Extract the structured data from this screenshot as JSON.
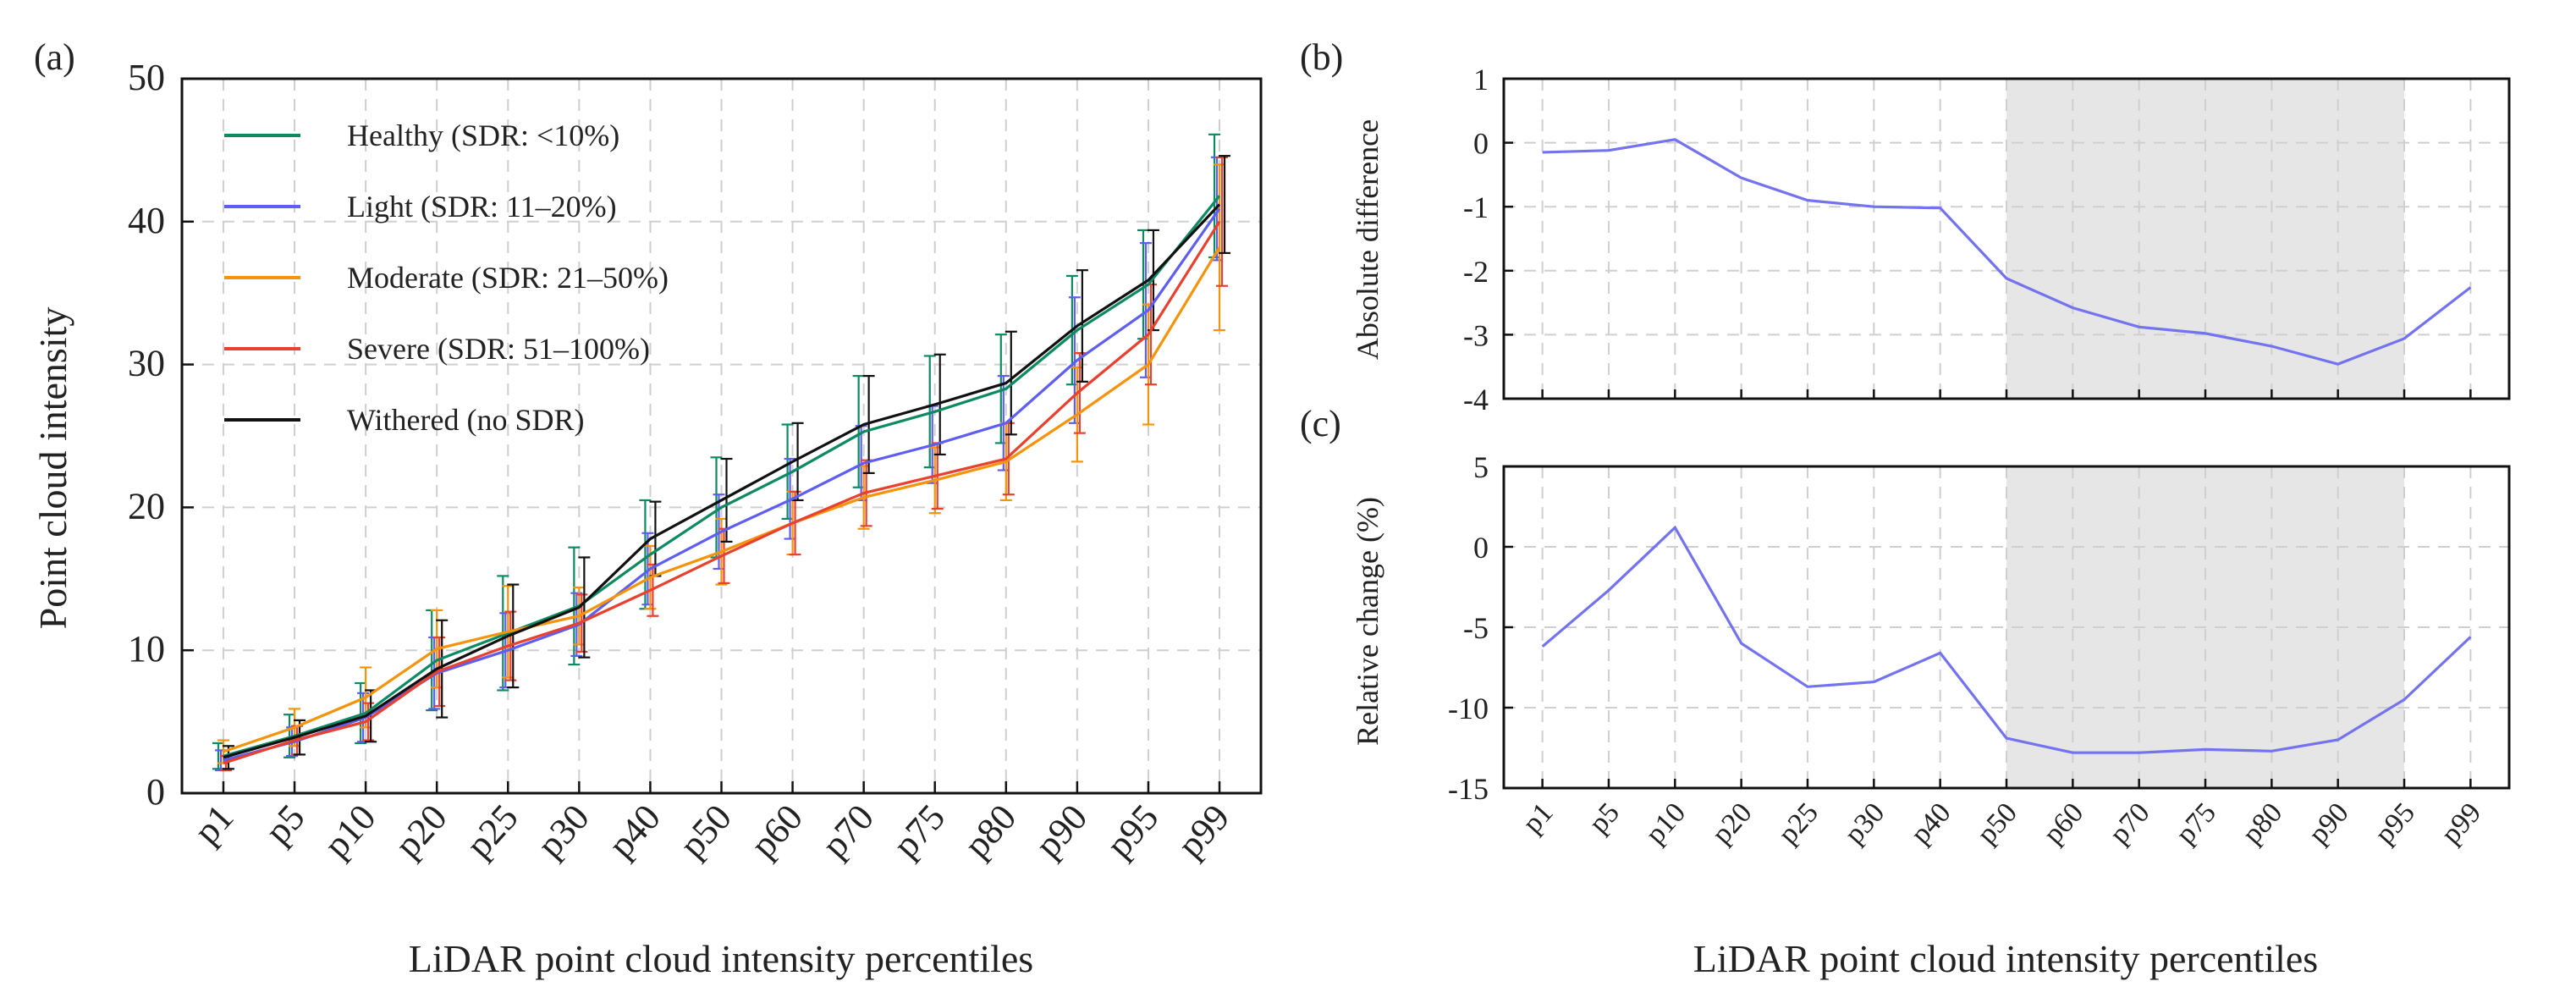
{
  "panels": {
    "a": "(a)",
    "b": "(b)",
    "c": "(c)"
  },
  "shared_xlabel": "LiDAR point cloud intensity percentiles",
  "chart_data": [
    {
      "id": "a",
      "type": "line",
      "title": "",
      "xlabel": "LiDAR point cloud intensity percentiles",
      "ylabel": "Point cloud intensity",
      "categories": [
        "p1",
        "p5",
        "p10",
        "p20",
        "p25",
        "p30",
        "p40",
        "p50",
        "p60",
        "p70",
        "p75",
        "p80",
        "p90",
        "p95",
        "p99"
      ],
      "ylim": [
        0,
        50
      ],
      "yticks": [
        0,
        10,
        20,
        30,
        40,
        50
      ],
      "grid": true,
      "legend_position": "top-left",
      "series": [
        {
          "name": "Healthy (SDR: <10%)",
          "color": "#0e8a63",
          "values": [
            2.6,
            4.0,
            5.6,
            9.3,
            11.2,
            13.1,
            16.7,
            20.0,
            22.5,
            25.3,
            26.7,
            28.3,
            32.4,
            35.6,
            41.8
          ],
          "errors": [
            0.9,
            1.5,
            2.1,
            3.5,
            4.0,
            4.1,
            3.8,
            3.5,
            3.3,
            3.9,
            3.9,
            3.8,
            3.8,
            3.8,
            4.3
          ]
        },
        {
          "name": "Light (SDR: 11–20%)",
          "color": "#5e5ef2",
          "values": [
            2.3,
            3.6,
            5.3,
            8.4,
            10.0,
            11.8,
            15.7,
            18.3,
            20.6,
            23.1,
            24.4,
            25.9,
            30.3,
            33.8,
            40.9
          ],
          "errors": [
            0.7,
            1.0,
            1.7,
            2.5,
            2.6,
            2.2,
            2.5,
            2.6,
            2.8,
            2.6,
            2.7,
            3.3,
            4.4,
            4.7,
            3.6
          ]
        },
        {
          "name": "Moderate (SDR: 21–50%)",
          "color": "#f5930a",
          "values": [
            2.9,
            4.6,
            6.7,
            10.1,
            11.3,
            12.4,
            15.1,
            16.9,
            18.9,
            20.7,
            21.9,
            23.2,
            26.5,
            30.0,
            38.2
          ],
          "errors": [
            0.8,
            1.3,
            2.1,
            2.7,
            3.2,
            2.0,
            2.2,
            2.3,
            2.2,
            2.2,
            2.3,
            2.7,
            3.3,
            4.2,
            5.8
          ]
        },
        {
          "name": "Severe (SDR: 51–100%)",
          "color": "#e8412f",
          "values": [
            2.1,
            3.7,
            5.0,
            8.5,
            10.3,
            11.9,
            14.2,
            16.6,
            18.9,
            21.0,
            22.2,
            23.4,
            28.0,
            32.1,
            40.0
          ],
          "errors": [
            0.5,
            1.0,
            1.3,
            2.4,
            2.4,
            2.0,
            1.8,
            1.9,
            2.2,
            2.3,
            2.3,
            2.5,
            2.8,
            3.5,
            4.5
          ]
        },
        {
          "name": "Withered (no SDR)",
          "color": "#111111",
          "values": [
            2.5,
            3.9,
            5.4,
            8.7,
            11.0,
            13.0,
            17.8,
            20.5,
            23.2,
            25.8,
            27.2,
            28.7,
            32.7,
            35.9,
            41.2
          ],
          "errors": [
            0.8,
            1.2,
            1.8,
            3.4,
            3.6,
            3.5,
            2.6,
            2.9,
            2.7,
            3.4,
            3.5,
            3.6,
            3.9,
            3.5,
            3.4
          ]
        }
      ]
    },
    {
      "id": "b",
      "type": "line",
      "title": "",
      "xlabel": "",
      "ylabel": "Absolute difference",
      "categories": [
        "p1",
        "p5",
        "p10",
        "p20",
        "p25",
        "p30",
        "p40",
        "p50",
        "p60",
        "p70",
        "p75",
        "p80",
        "p90",
        "p95",
        "p99"
      ],
      "ylim": [
        -4,
        1
      ],
      "yticks": [
        1,
        0,
        -1,
        -2,
        -3,
        -4
      ],
      "grid": true,
      "shaded_range": [
        "p50",
        "p95"
      ],
      "series": [
        {
          "name": "Absolute difference",
          "color": "#7373f0",
          "values": [
            -0.15,
            -0.12,
            0.05,
            -0.55,
            -0.9,
            -1.0,
            -1.02,
            -2.12,
            -2.58,
            -2.88,
            -2.98,
            -3.18,
            -3.46,
            -3.06,
            -2.26
          ]
        }
      ]
    },
    {
      "id": "c",
      "type": "line",
      "title": "",
      "xlabel": "LiDAR point cloud intensity percentiles",
      "ylabel": "Relative change (%)",
      "categories": [
        "p1",
        "p5",
        "p10",
        "p20",
        "p25",
        "p30",
        "p40",
        "p50",
        "p60",
        "p70",
        "p75",
        "p80",
        "p90",
        "p95",
        "p99"
      ],
      "ylim": [
        -15,
        5
      ],
      "yticks": [
        5,
        0,
        -5,
        -10,
        -15
      ],
      "grid": true,
      "shaded_range": [
        "p50",
        "p95"
      ],
      "series": [
        {
          "name": "Relative change (%)",
          "color": "#7373f0",
          "values": [
            -6.2,
            -2.7,
            1.2,
            -6.0,
            -8.7,
            -8.4,
            -6.6,
            -11.9,
            -12.8,
            -12.8,
            -12.6,
            -12.7,
            -12.0,
            -9.5,
            -5.6
          ]
        }
      ]
    }
  ]
}
